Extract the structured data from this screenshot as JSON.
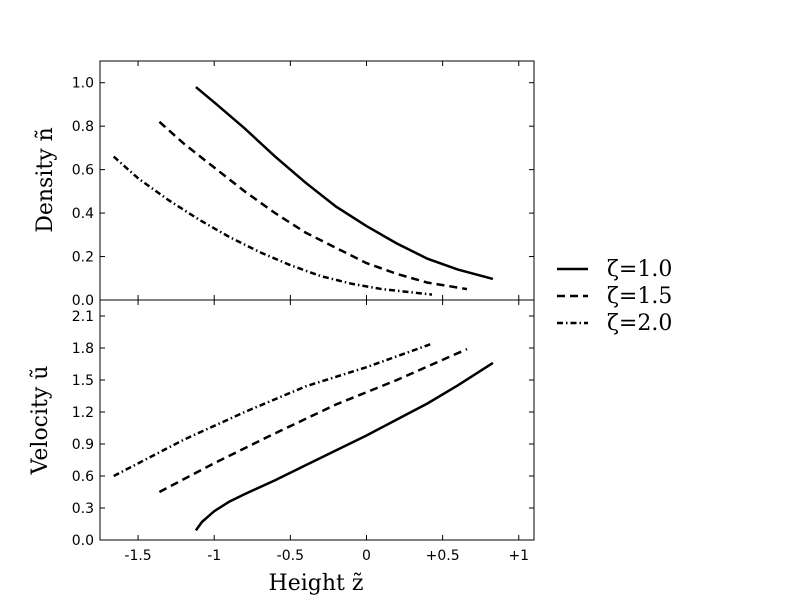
{
  "chart_data": [
    {
      "type": "line",
      "id": "density",
      "xlabel": "",
      "ylabel": "Density  ñ",
      "xlim": [
        -1.75,
        1.1
      ],
      "ylim": [
        0.0,
        1.1
      ],
      "yticks": [
        0.0,
        0.2,
        0.4,
        0.6,
        0.8,
        1.0
      ],
      "ytick_labels": [
        "0.0",
        "0.2",
        "0.4",
        "0.6",
        "0.8",
        "1.0"
      ],
      "grid": false,
      "series": [
        {
          "name": "ζ=1.0",
          "style": "solid",
          "x": [
            -1.12,
            -1.0,
            -0.8,
            -0.6,
            -0.4,
            -0.2,
            0.0,
            0.2,
            0.4,
            0.6,
            0.83
          ],
          "y": [
            0.98,
            0.91,
            0.79,
            0.66,
            0.54,
            0.43,
            0.34,
            0.26,
            0.19,
            0.14,
            0.097
          ]
        },
        {
          "name": "ζ=1.5",
          "style": "dashed",
          "x": [
            -1.36,
            -1.2,
            -1.0,
            -0.8,
            -0.6,
            -0.4,
            -0.2,
            0.0,
            0.2,
            0.4,
            0.66
          ],
          "y": [
            0.82,
            0.72,
            0.61,
            0.5,
            0.4,
            0.31,
            0.24,
            0.17,
            0.12,
            0.08,
            0.05
          ]
        },
        {
          "name": "ζ=2.0",
          "style": "dashdot",
          "x": [
            -1.66,
            -1.5,
            -1.3,
            -1.1,
            -0.9,
            -0.7,
            -0.5,
            -0.3,
            -0.1,
            0.1,
            0.3,
            0.43
          ],
          "y": [
            0.66,
            0.56,
            0.46,
            0.37,
            0.29,
            0.22,
            0.16,
            0.11,
            0.075,
            0.05,
            0.035,
            0.025
          ]
        }
      ]
    },
    {
      "type": "line",
      "id": "velocity",
      "xlabel": "Height  z̃",
      "ylabel": "Velocity  ũ",
      "xlim": [
        -1.75,
        1.1
      ],
      "ylim": [
        0.0,
        2.25
      ],
      "xticks": [
        -1.5,
        -1.0,
        -0.5,
        0.0,
        0.5,
        1.0
      ],
      "xtick_labels": [
        "-1.5",
        "-1",
        "-0.5",
        "0",
        "+0.5",
        "+1"
      ],
      "yticks": [
        0.0,
        0.3,
        0.6,
        0.9,
        1.2,
        1.5,
        1.8,
        2.1
      ],
      "ytick_labels": [
        "0.0",
        "0.3",
        "0.6",
        "0.9",
        "1.2",
        "1.5",
        "1.8",
        "2.1"
      ],
      "grid": false,
      "series": [
        {
          "name": "ζ=1.0",
          "style": "solid",
          "x": [
            -1.12,
            -1.08,
            -1.0,
            -0.9,
            -0.8,
            -0.6,
            -0.4,
            -0.2,
            0.0,
            0.2,
            0.4,
            0.6,
            0.83
          ],
          "y": [
            0.09,
            0.17,
            0.27,
            0.36,
            0.43,
            0.56,
            0.7,
            0.84,
            0.98,
            1.13,
            1.28,
            1.45,
            1.66
          ]
        },
        {
          "name": "ζ=1.5",
          "style": "dashed",
          "x": [
            -1.36,
            -1.0,
            -0.6,
            -0.2,
            0.2,
            0.66
          ],
          "y": [
            0.45,
            0.72,
            1.0,
            1.27,
            1.5,
            1.79
          ]
        },
        {
          "name": "ζ=2.0",
          "style": "dashdot",
          "x": [
            -1.66,
            -1.2,
            -0.8,
            -0.4,
            0.0,
            0.43
          ],
          "y": [
            0.6,
            0.94,
            1.2,
            1.44,
            1.62,
            1.84
          ]
        }
      ]
    }
  ],
  "legend": {
    "placement": "right",
    "entries": [
      {
        "label": "ζ=1.0",
        "style": "solid"
      },
      {
        "label": "ζ=1.5",
        "style": "dashed"
      },
      {
        "label": "ζ=2.0",
        "style": "dashdot"
      }
    ]
  }
}
